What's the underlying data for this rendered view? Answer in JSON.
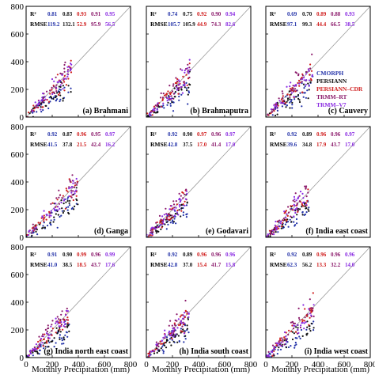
{
  "figure": {
    "xlabel": "Monthly Precipitation (mm)",
    "stat_labels": {
      "r2": "R²",
      "rmse": "RMSE"
    }
  },
  "legend": {
    "placement": "inside-panel-c-right",
    "items": [
      {
        "name": "CMORPH",
        "color": "#2332a8"
      },
      {
        "name": "PERSIANN",
        "color": "#111111"
      },
      {
        "name": "PERSIANN–CDR",
        "color": "#d01e1e"
      },
      {
        "name": "TRMM–RT",
        "color": "#8b1a6b"
      },
      {
        "name": "TRMM–V7",
        "color": "#8a2be2"
      }
    ]
  },
  "chart_data": [
    {
      "type": "scatter",
      "title": "(a) Brahmani",
      "xlim": [
        0,
        800
      ],
      "ylim": [
        0,
        800
      ],
      "xticks": [],
      "yticks": [
        0,
        200,
        400,
        600,
        800
      ],
      "r2": [
        "0.81",
        "0.83",
        "0.93",
        "0.91",
        "0.95"
      ],
      "rmse": [
        "119.2",
        "132.1",
        "52.9",
        "95.9",
        "56.5"
      ]
    },
    {
      "type": "scatter",
      "title": "(b) Brahmaputra",
      "xlim": [
        0,
        800
      ],
      "ylim": [
        0,
        800
      ],
      "xticks": [],
      "yticks": [],
      "r2": [
        "0.74",
        "0.75",
        "0.92",
        "0.90",
        "0.94"
      ],
      "rmse": [
        "105.7",
        "105.9",
        "44.9",
        "74.3",
        "82.6"
      ]
    },
    {
      "type": "scatter",
      "title": "(c) Cauvery",
      "xlim": [
        0,
        800
      ],
      "ylim": [
        0,
        800
      ],
      "xticks": [],
      "yticks": [],
      "r2": [
        "0.69",
        "0.70",
        "0.89",
        "0.88",
        "0.93"
      ],
      "rmse": [
        "97.1",
        "99.3",
        "44.4",
        "66.5",
        "38.5"
      ]
    },
    {
      "type": "scatter",
      "title": "(d) Ganga",
      "xlim": [
        0,
        800
      ],
      "ylim": [
        0,
        800
      ],
      "xticks": [],
      "yticks": [
        0,
        200,
        400,
        600,
        800
      ],
      "r2": [
        "0.92",
        "0.87",
        "0.96",
        "0.95",
        "0.97"
      ],
      "rmse": [
        "41.5",
        "37.8",
        "21.5",
        "42.4",
        "16.2"
      ]
    },
    {
      "type": "scatter",
      "title": "(e) Godavari",
      "xlim": [
        0,
        800
      ],
      "ylim": [
        0,
        800
      ],
      "xticks": [],
      "yticks": [],
      "r2": [
        "0.92",
        "0.90",
        "0.97",
        "0.96",
        "0.97"
      ],
      "rmse": [
        "42.8",
        "37.5",
        "17.0",
        "41.4",
        "17.0"
      ]
    },
    {
      "type": "scatter",
      "title": "(f) India east coast",
      "xlim": [
        0,
        800
      ],
      "ylim": [
        0,
        800
      ],
      "xticks": [],
      "yticks": [],
      "r2": [
        "0.92",
        "0.89",
        "0.96",
        "0.96",
        "0.97"
      ],
      "rmse": [
        "39.6",
        "34.8",
        "17.9",
        "43.7",
        "17.0"
      ]
    },
    {
      "type": "scatter",
      "title": "(g) India north east coast",
      "xlim": [
        0,
        800
      ],
      "ylim": [
        0,
        800
      ],
      "xticks": [
        0,
        200,
        400,
        600,
        800
      ],
      "yticks": [
        0,
        200,
        400,
        600,
        800
      ],
      "r2": [
        "0.91",
        "0.90",
        "0.99",
        "0.96",
        "0.99"
      ],
      "rmse": [
        "41.0",
        "38.5",
        "18.5",
        "43.7",
        "17.6"
      ]
    },
    {
      "type": "scatter",
      "title": "(h) India south coast",
      "xlim": [
        0,
        800
      ],
      "ylim": [
        0,
        800
      ],
      "xticks": [
        0,
        200,
        400,
        600,
        800
      ],
      "yticks": [],
      "r2": [
        "0.92",
        "0.89",
        "0.96",
        "0.96",
        "0.96"
      ],
      "rmse": [
        "42.8",
        "37.0",
        "15.4",
        "41.7",
        "15.8"
      ]
    },
    {
      "type": "scatter",
      "title": "(i) India west coast",
      "xlim": [
        0,
        800
      ],
      "ylim": [
        0,
        800
      ],
      "xticks": [
        0,
        200,
        400,
        600,
        800
      ],
      "yticks": [],
      "r2": [
        "0.92",
        "0.89",
        "0.96",
        "0.96",
        "0.96"
      ],
      "rmse": [
        "62.3",
        "56.2",
        "13.3",
        "32.2",
        "14.0"
      ]
    }
  ]
}
